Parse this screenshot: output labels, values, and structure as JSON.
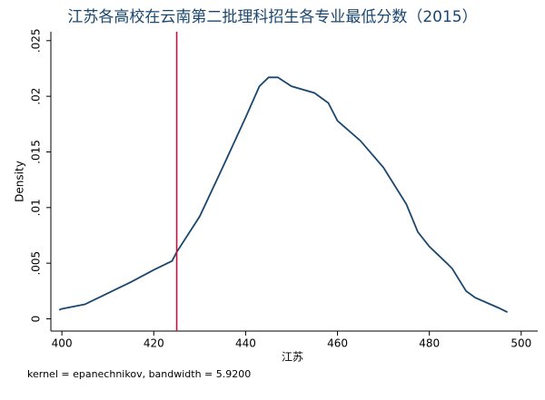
{
  "chart_data": {
    "type": "line",
    "title": "江苏各高校在云南第二批理科招生各专业最低分数（2015）",
    "x_label": "江苏",
    "y_label": "Density",
    "note": "kernel = epanechnikov, bandwidth = 5.9200",
    "x": [
      399.4,
      400,
      405,
      410,
      415,
      420,
      424,
      425,
      430,
      435,
      440,
      443,
      445,
      447,
      450,
      455,
      458,
      460,
      465,
      470,
      475,
      477.5,
      480,
      483.8,
      485,
      488,
      490,
      495,
      497
    ],
    "values": [
      0.0008,
      0.0009,
      0.0013,
      0.0023,
      0.0033,
      0.0044,
      0.0052,
      0.006,
      0.0092,
      0.0136,
      0.0181,
      0.0209,
      0.0217,
      0.0217,
      0.0209,
      0.0203,
      0.0194,
      0.0178,
      0.016,
      0.0136,
      0.0103,
      0.0078,
      0.0065,
      0.005,
      0.0045,
      0.0025,
      0.0019,
      0.001,
      0.0006
    ],
    "color": "#1a476f",
    "reference_line": {
      "x": 425,
      "color": "#c0143c"
    },
    "xlim": [
      397.6,
      503.6
    ],
    "xticks": [
      400,
      420,
      440,
      460,
      480,
      500
    ],
    "ylim": [
      -0.0011,
      0.0258
    ],
    "yticks": [
      {
        "value": 0,
        "label": "0"
      },
      {
        "value": 0.005,
        "label": ".005"
      },
      {
        "value": 0.01,
        "label": ".01"
      },
      {
        "value": 0.015,
        "label": ".015"
      },
      {
        "value": 0.02,
        "label": ".02"
      },
      {
        "value": 0.025,
        "label": ".025"
      }
    ]
  }
}
